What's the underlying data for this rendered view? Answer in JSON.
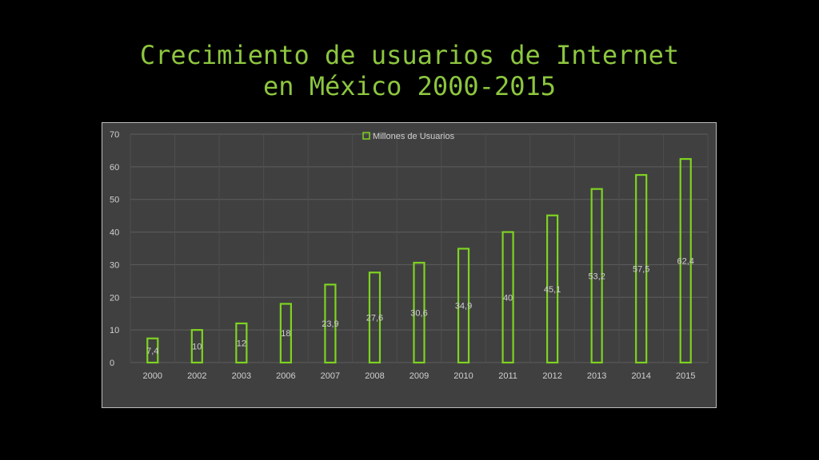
{
  "title_line1": "Crecimiento de usuarios de Internet",
  "title_line2": "en México 2000-2015",
  "colors": {
    "background": "#000000",
    "title": "#8dc63f",
    "plot_background": "#404040",
    "bar_outline": "#7ed321",
    "text": "#d0d0d0"
  },
  "chart_data": {
    "type": "bar",
    "categories": [
      "2000",
      "2002",
      "2003",
      "2006",
      "2007",
      "2008",
      "2009",
      "2010",
      "2011",
      "2012",
      "2013",
      "2014",
      "2015"
    ],
    "series": [
      {
        "name": "Millones de Usuarios",
        "values": [
          7.4,
          10,
          12,
          18,
          23.9,
          27.6,
          30.6,
          34.9,
          40,
          45.1,
          53.2,
          57.5,
          62.4
        ],
        "labels": [
          "7,4",
          "10",
          "12",
          "18",
          "23,9",
          "27,6",
          "30,6",
          "34,9",
          "40",
          "45,1",
          "53,2",
          "57,5",
          "62,4"
        ]
      }
    ],
    "yticks": [
      "0",
      "10",
      "20",
      "30",
      "40",
      "50",
      "60",
      "70"
    ],
    "ylim": [
      0,
      70
    ],
    "grid": true,
    "legend_position": "top-center",
    "title": "Crecimiento de usuarios de Internet en México 2000-2015"
  }
}
